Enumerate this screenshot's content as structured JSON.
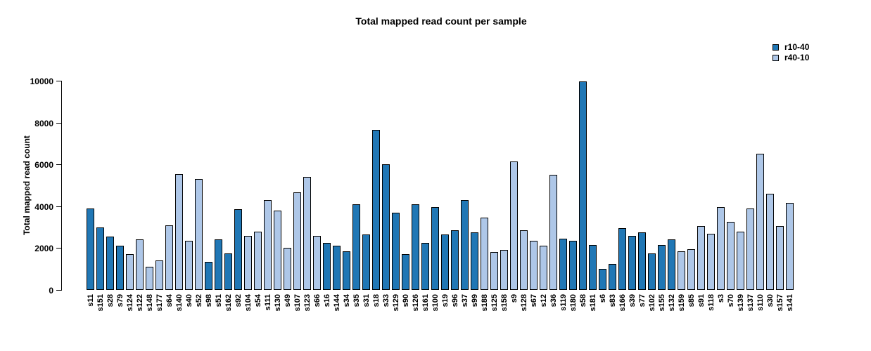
{
  "chart_data": {
    "type": "bar",
    "title": "Total mapped read count per sample",
    "ylabel": "Total mapped read count",
    "xlabel": "",
    "ylim": [
      0,
      10000
    ],
    "yticks": [
      0,
      2000,
      4000,
      6000,
      8000,
      10000
    ],
    "grid": false,
    "legend_position": "top-right",
    "legend": [
      {
        "label": "r10-40",
        "color": "#2077b5"
      },
      {
        "label": "r40-10",
        "color": "#aec7e8"
      }
    ],
    "samples": [
      {
        "id": "s11",
        "value": 3900,
        "group": "r10-40"
      },
      {
        "id": "s151",
        "value": 3000,
        "group": "r10-40"
      },
      {
        "id": "s28",
        "value": 2550,
        "group": "r10-40"
      },
      {
        "id": "s79",
        "value": 2100,
        "group": "r10-40"
      },
      {
        "id": "s124",
        "value": 1700,
        "group": "r40-10"
      },
      {
        "id": "s122",
        "value": 2400,
        "group": "r40-10"
      },
      {
        "id": "s148",
        "value": 1100,
        "group": "r40-10"
      },
      {
        "id": "s177",
        "value": 1400,
        "group": "r40-10"
      },
      {
        "id": "s64",
        "value": 3100,
        "group": "r40-10"
      },
      {
        "id": "s140",
        "value": 5550,
        "group": "r40-10"
      },
      {
        "id": "s40",
        "value": 2350,
        "group": "r40-10"
      },
      {
        "id": "s52",
        "value": 5300,
        "group": "r40-10"
      },
      {
        "id": "s98",
        "value": 1350,
        "group": "r10-40"
      },
      {
        "id": "s51",
        "value": 2400,
        "group": "r10-40"
      },
      {
        "id": "s162",
        "value": 1750,
        "group": "r10-40"
      },
      {
        "id": "s92",
        "value": 3850,
        "group": "r10-40"
      },
      {
        "id": "s104",
        "value": 2600,
        "group": "r40-10"
      },
      {
        "id": "s54",
        "value": 2800,
        "group": "r40-10"
      },
      {
        "id": "s111",
        "value": 4300,
        "group": "r40-10"
      },
      {
        "id": "s130",
        "value": 3800,
        "group": "r40-10"
      },
      {
        "id": "s49",
        "value": 2000,
        "group": "r40-10"
      },
      {
        "id": "s107",
        "value": 4650,
        "group": "r40-10"
      },
      {
        "id": "s123",
        "value": 5400,
        "group": "r40-10"
      },
      {
        "id": "s66",
        "value": 2600,
        "group": "r40-10"
      },
      {
        "id": "s16",
        "value": 2250,
        "group": "r10-40"
      },
      {
        "id": "s144",
        "value": 2100,
        "group": "r10-40"
      },
      {
        "id": "s34",
        "value": 1850,
        "group": "r10-40"
      },
      {
        "id": "s35",
        "value": 4100,
        "group": "r10-40"
      },
      {
        "id": "s31",
        "value": 2650,
        "group": "r10-40"
      },
      {
        "id": "s18",
        "value": 7650,
        "group": "r10-40"
      },
      {
        "id": "s33",
        "value": 6000,
        "group": "r10-40"
      },
      {
        "id": "s129",
        "value": 3700,
        "group": "r10-40"
      },
      {
        "id": "s90",
        "value": 1700,
        "group": "r10-40"
      },
      {
        "id": "s126",
        "value": 4100,
        "group": "r10-40"
      },
      {
        "id": "s161",
        "value": 2250,
        "group": "r10-40"
      },
      {
        "id": "s100",
        "value": 3950,
        "group": "r10-40"
      },
      {
        "id": "s19",
        "value": 2650,
        "group": "r10-40"
      },
      {
        "id": "s96",
        "value": 2850,
        "group": "r10-40"
      },
      {
        "id": "s37",
        "value": 4300,
        "group": "r10-40"
      },
      {
        "id": "s99",
        "value": 2750,
        "group": "r10-40"
      },
      {
        "id": "s188",
        "value": 3450,
        "group": "r40-10"
      },
      {
        "id": "s125",
        "value": 1800,
        "group": "r40-10"
      },
      {
        "id": "s158",
        "value": 1900,
        "group": "r40-10"
      },
      {
        "id": "s9",
        "value": 6150,
        "group": "r40-10"
      },
      {
        "id": "s128",
        "value": 2850,
        "group": "r40-10"
      },
      {
        "id": "s67",
        "value": 2350,
        "group": "r40-10"
      },
      {
        "id": "s12",
        "value": 2100,
        "group": "r40-10"
      },
      {
        "id": "s36",
        "value": 5500,
        "group": "r40-10"
      },
      {
        "id": "s119",
        "value": 2450,
        "group": "r10-40"
      },
      {
        "id": "s180",
        "value": 2350,
        "group": "r10-40"
      },
      {
        "id": "s58",
        "value": 9950,
        "group": "r10-40"
      },
      {
        "id": "s181",
        "value": 2150,
        "group": "r10-40"
      },
      {
        "id": "s6",
        "value": 1000,
        "group": "r10-40"
      },
      {
        "id": "s83",
        "value": 1250,
        "group": "r10-40"
      },
      {
        "id": "s166",
        "value": 2950,
        "group": "r10-40"
      },
      {
        "id": "s39",
        "value": 2600,
        "group": "r10-40"
      },
      {
        "id": "s77",
        "value": 2750,
        "group": "r10-40"
      },
      {
        "id": "s102",
        "value": 1750,
        "group": "r10-40"
      },
      {
        "id": "s155",
        "value": 2150,
        "group": "r10-40"
      },
      {
        "id": "s132",
        "value": 2400,
        "group": "r10-40"
      },
      {
        "id": "s159",
        "value": 1850,
        "group": "r40-10"
      },
      {
        "id": "s85",
        "value": 1950,
        "group": "r40-10"
      },
      {
        "id": "s91",
        "value": 3050,
        "group": "r40-10"
      },
      {
        "id": "s118",
        "value": 2700,
        "group": "r40-10"
      },
      {
        "id": "s3",
        "value": 3950,
        "group": "r40-10"
      },
      {
        "id": "s70",
        "value": 3250,
        "group": "r40-10"
      },
      {
        "id": "s139",
        "value": 2800,
        "group": "r40-10"
      },
      {
        "id": "s137",
        "value": 3900,
        "group": "r40-10"
      },
      {
        "id": "s110",
        "value": 6500,
        "group": "r40-10"
      },
      {
        "id": "s30",
        "value": 4600,
        "group": "r40-10"
      },
      {
        "id": "s157",
        "value": 3050,
        "group": "r40-10"
      },
      {
        "id": "s141",
        "value": 4150,
        "group": "r40-10"
      }
    ]
  }
}
